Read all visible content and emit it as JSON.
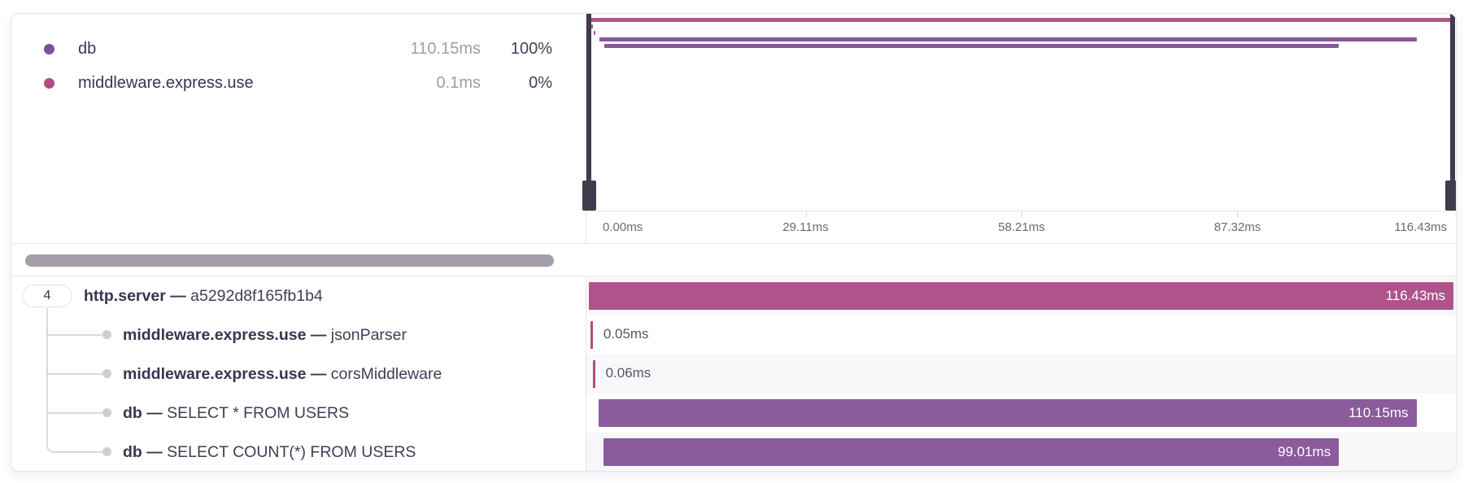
{
  "legend": {
    "items": [
      {
        "name": "db",
        "color": "#7e5095",
        "duration": "110.15ms",
        "percent": "100%"
      },
      {
        "name": "middleware.express.use",
        "color": "#b04e82",
        "duration": "0.1ms",
        "percent": "0%"
      }
    ]
  },
  "chart_data": {
    "type": "bar",
    "title": "trace span waterfall",
    "total_ms": 116.43,
    "axis_tick_labels": [
      "0.00ms",
      "29.11ms",
      "58.21ms",
      "87.32ms",
      "116.43ms"
    ],
    "axis_tick_values_ms": [
      0,
      29.11,
      58.21,
      87.32,
      116.43
    ],
    "series": [
      {
        "name": "http.server",
        "start_ms": 0,
        "duration_ms": 116.43
      },
      {
        "name": "middleware.express.use jsonParser",
        "start_ms": 0.2,
        "duration_ms": 0.05
      },
      {
        "name": "middleware.express.use corsMiddleware",
        "start_ms": 0.5,
        "duration_ms": 0.06
      },
      {
        "name": "db SELECT * FROM USERS",
        "start_ms": 1.3,
        "duration_ms": 110.15
      },
      {
        "name": "db SELECT COUNT(*) FROM USERS",
        "start_ms": 2.0,
        "duration_ms": 99.01
      }
    ]
  },
  "trace": {
    "separator": " — ",
    "root_badge_count": "4",
    "rows": [
      {
        "name": "http.server",
        "op": "a5292d8f165fb1b4",
        "label": "116.43ms",
        "start_ms": 0,
        "duration_ms": 116.43,
        "kind": "bar",
        "color": "#b0538a",
        "depth": 0,
        "stripe": true
      },
      {
        "name": "middleware.express.use",
        "op": "jsonParser",
        "label": "0.05ms",
        "start_ms": 0.2,
        "duration_ms": 0.05,
        "kind": "tick",
        "color": "#b04e82",
        "depth": 1,
        "stripe": false
      },
      {
        "name": "middleware.express.use",
        "op": "corsMiddleware",
        "label": "0.06ms",
        "start_ms": 0.5,
        "duration_ms": 0.06,
        "kind": "tick",
        "color": "#b04e82",
        "depth": 1,
        "stripe": true
      },
      {
        "name": "db",
        "op": "SELECT * FROM USERS",
        "label": "110.15ms",
        "start_ms": 1.3,
        "duration_ms": 110.15,
        "kind": "bar",
        "color": "#8b5b9b",
        "depth": 1,
        "stripe": false
      },
      {
        "name": "db",
        "op": "SELECT COUNT(*) FROM USERS",
        "label": "99.01ms",
        "start_ms": 2.0,
        "duration_ms": 99.01,
        "kind": "bar",
        "color": "#8b5b9b",
        "depth": 1,
        "stripe": true
      }
    ]
  },
  "minimap": {
    "row_colors": [
      "#b05589",
      "#b04e82",
      "#b04e82",
      "#87589a",
      "#87589a"
    ]
  }
}
